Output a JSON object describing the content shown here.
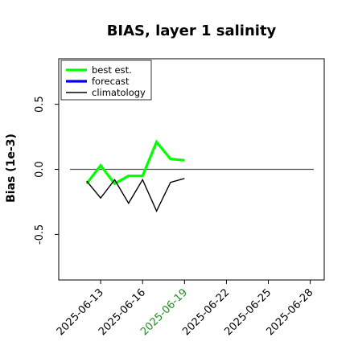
{
  "chart_data": {
    "type": "line",
    "title": "BIAS, layer 1 salinity",
    "ylabel": "Bias (1e-3)",
    "xlabel": "",
    "ylim": [
      -0.85,
      0.85
    ],
    "yticks": [
      -0.5,
      0.0,
      0.5
    ],
    "ytick_labels": [
      "-0.5",
      "0.0",
      "0.5"
    ],
    "xlim": [
      "2025-06-10",
      "2025-06-29"
    ],
    "xticks": [
      "2025-06-13",
      "2025-06-16",
      "2025-06-19",
      "2025-06-22",
      "2025-06-25",
      "2025-06-28"
    ],
    "xtick_colors": [
      "#000000",
      "#000000",
      "#228b22",
      "#000000",
      "#000000",
      "#000000"
    ],
    "reference_line": 0.0,
    "legend_position": "top-left",
    "series": [
      {
        "name": "best est.",
        "color": "#00ff00",
        "x": [
          "2025-06-12",
          "2025-06-13",
          "2025-06-14",
          "2025-06-15",
          "2025-06-16",
          "2025-06-17",
          "2025-06-18",
          "2025-06-19"
        ],
        "values": [
          -0.11,
          0.03,
          -0.11,
          -0.05,
          -0.05,
          0.21,
          0.08,
          0.07
        ]
      },
      {
        "name": "forecast",
        "color": "#0000ff",
        "x": [],
        "values": []
      },
      {
        "name": "climatology",
        "color": "#000000",
        "x": [
          "2025-06-12",
          "2025-06-13",
          "2025-06-14",
          "2025-06-15",
          "2025-06-16",
          "2025-06-17",
          "2025-06-18",
          "2025-06-19"
        ],
        "values": [
          -0.09,
          -0.22,
          -0.08,
          -0.26,
          -0.08,
          -0.32,
          -0.1,
          -0.07
        ]
      }
    ]
  }
}
